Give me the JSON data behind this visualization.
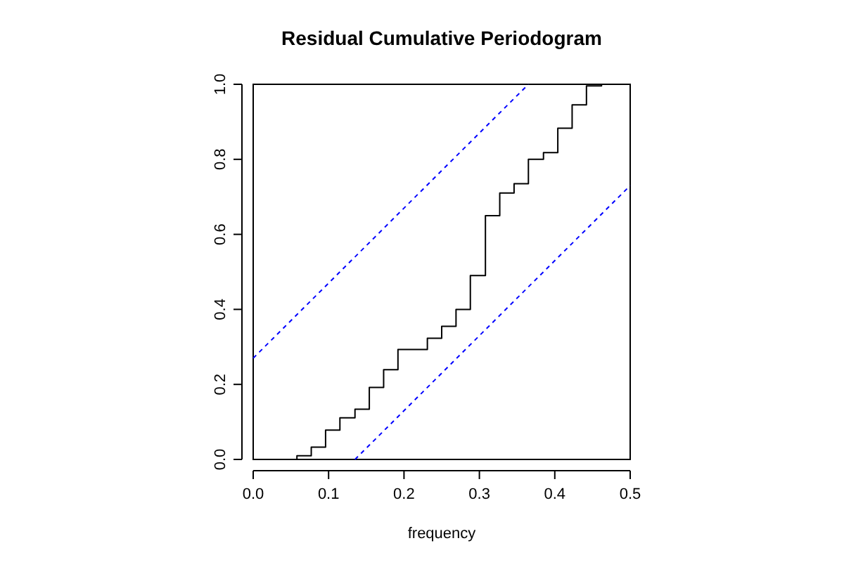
{
  "chart_data": {
    "type": "step",
    "title": "Residual Cumulative Periodogram",
    "xlabel": "frequency",
    "xlim": [
      0,
      0.5
    ],
    "ylim": [
      0,
      1
    ],
    "xticks": [
      {
        "value": 0,
        "label": "0.0"
      },
      0.1,
      0.2,
      0.3,
      0.4,
      0.5
    ],
    "yticks": [
      {
        "value": 0,
        "label": "0.0"
      },
      0.2,
      0.4,
      0.6,
      0.8,
      {
        "value": 1,
        "label": "1.0"
      }
    ],
    "grid": false,
    "series": [
      {
        "type": "step",
        "color": "#000000",
        "line_style": "solid",
        "x": [
          0.019,
          0.038,
          0.058,
          0.077,
          0.096,
          0.115,
          0.135,
          0.154,
          0.173,
          0.192,
          0.212,
          0.231,
          0.25,
          0.269,
          0.288,
          0.308,
          0.327,
          0.346,
          0.365,
          0.385,
          0.404,
          0.423,
          0.442,
          0.462,
          0.481
        ],
        "values": [
          0,
          0,
          0.01,
          0.033,
          0.078,
          0.111,
          0.134,
          0.192,
          0.239,
          0.293,
          0.293,
          0.323,
          0.355,
          0.4,
          0.49,
          0.65,
          0.71,
          0.735,
          0.8,
          0.818,
          0.883,
          0.945,
          0.996,
          1,
          1
        ]
      },
      {
        "type": "line",
        "color": "#0000ff",
        "line_style": "dashed",
        "x": [
          0,
          0.365
        ],
        "values": [
          0.27,
          1
        ]
      },
      {
        "type": "line",
        "color": "#0000ff",
        "line_style": "dashed",
        "x": [
          0.135,
          0.5
        ],
        "values": [
          0,
          0.73
        ]
      }
    ]
  }
}
